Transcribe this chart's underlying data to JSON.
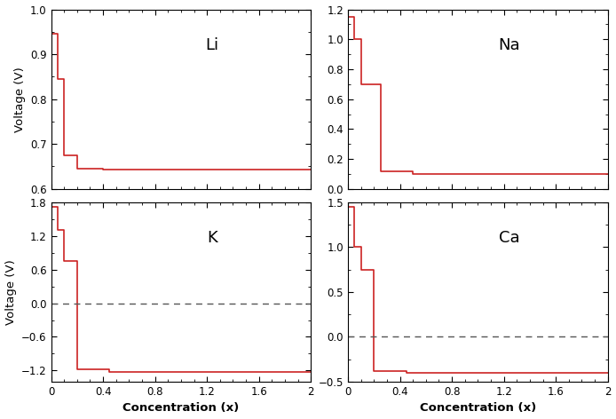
{
  "subplots": [
    {
      "label": "Li",
      "ylim": [
        0.6,
        1.0
      ],
      "yticks": [
        0.6,
        0.7,
        0.8,
        0.9,
        1.0
      ],
      "ylabel": "Voltage (V)",
      "show_xlabel": false,
      "show_dashed": false,
      "x": [
        0.0,
        0.05,
        0.05,
        0.1,
        0.1,
        0.2,
        0.2,
        0.4,
        0.4,
        2.0
      ],
      "y": [
        0.945,
        0.945,
        0.845,
        0.845,
        0.675,
        0.675,
        0.645,
        0.645,
        0.643,
        0.643
      ]
    },
    {
      "label": "Na",
      "ylim": [
        0.0,
        1.2
      ],
      "yticks": [
        0.0,
        0.2,
        0.4,
        0.6,
        0.8,
        1.0,
        1.2
      ],
      "ylabel": "",
      "show_xlabel": false,
      "show_dashed": false,
      "x": [
        0.0,
        0.05,
        0.05,
        0.1,
        0.1,
        0.25,
        0.25,
        0.5,
        0.5,
        2.0
      ],
      "y": [
        1.15,
        1.15,
        1.0,
        1.0,
        0.7,
        0.7,
        0.12,
        0.12,
        0.1,
        0.1
      ]
    },
    {
      "label": "K",
      "ylim": [
        -1.4,
        1.8
      ],
      "yticks": [
        -1.2,
        -0.6,
        0.0,
        0.6,
        1.2,
        1.8
      ],
      "ylabel": "Voltage (V)",
      "show_xlabel": true,
      "show_dashed": true,
      "x": [
        0.0,
        0.05,
        0.05,
        0.1,
        0.1,
        0.2,
        0.2,
        0.45,
        0.45,
        2.0
      ],
      "y": [
        1.72,
        1.72,
        1.3,
        1.3,
        0.75,
        0.75,
        -1.18,
        -1.18,
        -1.22,
        -1.22
      ]
    },
    {
      "label": "Ca",
      "ylim": [
        -0.5,
        1.5
      ],
      "yticks": [
        -0.5,
        0.0,
        0.5,
        1.0,
        1.5
      ],
      "ylabel": "",
      "show_xlabel": true,
      "show_dashed": true,
      "x": [
        0.0,
        0.05,
        0.05,
        0.1,
        0.1,
        0.2,
        0.2,
        0.45,
        0.45,
        2.0
      ],
      "y": [
        1.45,
        1.45,
        1.0,
        1.0,
        0.75,
        0.75,
        -0.38,
        -0.38,
        -0.4,
        -0.4
      ]
    }
  ],
  "xlim": [
    0,
    2.0
  ],
  "xticks": [
    0.0,
    0.4,
    0.8,
    1.2,
    1.6,
    2.0
  ],
  "xticklabels": [
    "0",
    "0.4",
    "0.8",
    "1.2",
    "1.6",
    "2"
  ],
  "xlabel": "Concentration (x)",
  "line_color": "#cc2222",
  "dashed_color": "#555555",
  "dashed_linewidth": 1.0,
  "bg_color": "#ffffff",
  "tick_labelsize": 8.5,
  "ylabel_fontsize": 9.5,
  "xlabel_fontsize": 9.5,
  "label_fontsize": 13
}
